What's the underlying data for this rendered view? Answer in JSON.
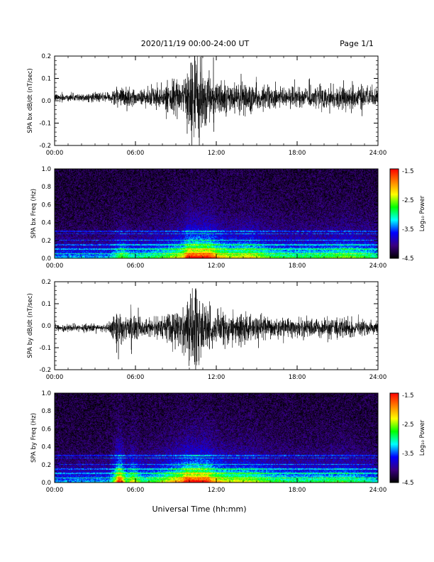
{
  "header": {
    "title": "2020/11/19  00:00-24:00 UT",
    "page": "Page 1/1"
  },
  "footer": {
    "xlabel": "Universal Time (hh:mm)"
  },
  "colorbar": {
    "label": "Log₁₀ Power",
    "ticks": [
      "-1.5",
      "-2.5",
      "-3.5",
      "-4.5"
    ],
    "range": [
      -4.5,
      -1.5
    ],
    "colors": [
      "#000000",
      "#3a0080",
      "#0000ff",
      "#00ffff",
      "#00ff00",
      "#ffff00",
      "#ff8000",
      "#ff0000"
    ]
  },
  "chart_data": [
    {
      "type": "line",
      "name": "bx-timeseries",
      "ylabel": "SPA bx dB/dt (nT/sec)",
      "xlim": [
        0,
        24
      ],
      "ylim": [
        -0.2,
        0.2
      ],
      "x_ticks": [
        "00:00",
        "06:00",
        "12:00",
        "18:00",
        "24:00"
      ],
      "y_ticks": [
        "0.2",
        "0.1",
        "0.0",
        "-0.1",
        "-0.2"
      ],
      "envelope": {
        "hours": [
          0,
          4,
          4.6,
          5,
          5.5,
          6,
          8,
          9.5,
          10.2,
          10.6,
          11,
          11.5,
          12,
          13,
          14.5,
          16,
          18,
          20,
          21.5,
          22,
          24
        ],
        "amplitude": [
          0.018,
          0.02,
          0.045,
          0.06,
          0.04,
          0.035,
          0.05,
          0.08,
          0.17,
          0.2,
          0.15,
          0.12,
          0.09,
          0.07,
          0.08,
          0.05,
          0.045,
          0.05,
          0.06,
          0.06,
          0.04
        ]
      },
      "offset": 0.015
    },
    {
      "type": "heatmap",
      "name": "bx-spectrogram",
      "ylabel": "SPA bx Freq (Hz)",
      "xlim": [
        0,
        24
      ],
      "ylim": [
        0,
        1
      ],
      "x_ticks": [
        "00:00",
        "06:00",
        "12:00",
        "18:00",
        "24:00"
      ],
      "y_ticks": [
        "1.0",
        "0.8",
        "0.6",
        "0.4",
        "0.2",
        "0.0"
      ],
      "zlim": [
        -4.5,
        -1.5
      ]
    },
    {
      "type": "line",
      "name": "by-timeseries",
      "ylabel": "SPA by dB/dt (nT/sec)",
      "xlim": [
        0,
        24
      ],
      "ylim": [
        -0.2,
        0.2
      ],
      "x_ticks": [
        "00:00",
        "06:00",
        "12:00",
        "18:00",
        "24:00"
      ],
      "y_ticks": [
        "0.2",
        "0.1",
        "0.0",
        "-0.1",
        "-0.2"
      ],
      "envelope": {
        "hours": [
          0,
          4,
          4.4,
          4.8,
          5.3,
          5.8,
          6.5,
          8,
          9.5,
          10.3,
          10.7,
          11.2,
          11.8,
          13,
          14.5,
          16,
          18,
          20,
          21.5,
          22.5,
          24
        ],
        "amplitude": [
          0.015,
          0.02,
          0.06,
          0.13,
          0.05,
          0.08,
          0.04,
          0.06,
          0.1,
          0.2,
          0.18,
          0.13,
          0.09,
          0.07,
          0.07,
          0.05,
          0.04,
          0.045,
          0.05,
          0.04,
          0.03
        ]
      },
      "offset": -0.01
    },
    {
      "type": "heatmap",
      "name": "by-spectrogram",
      "ylabel": "SPA by Freq (Hz)",
      "xlim": [
        0,
        24
      ],
      "ylim": [
        0,
        1
      ],
      "x_ticks": [
        "00:00",
        "06:00",
        "12:00",
        "18:00",
        "24:00"
      ],
      "y_ticks": [
        "1.0",
        "0.8",
        "0.6",
        "0.4",
        "0.2",
        "0.0"
      ],
      "zlim": [
        -4.5,
        -1.5
      ]
    }
  ]
}
